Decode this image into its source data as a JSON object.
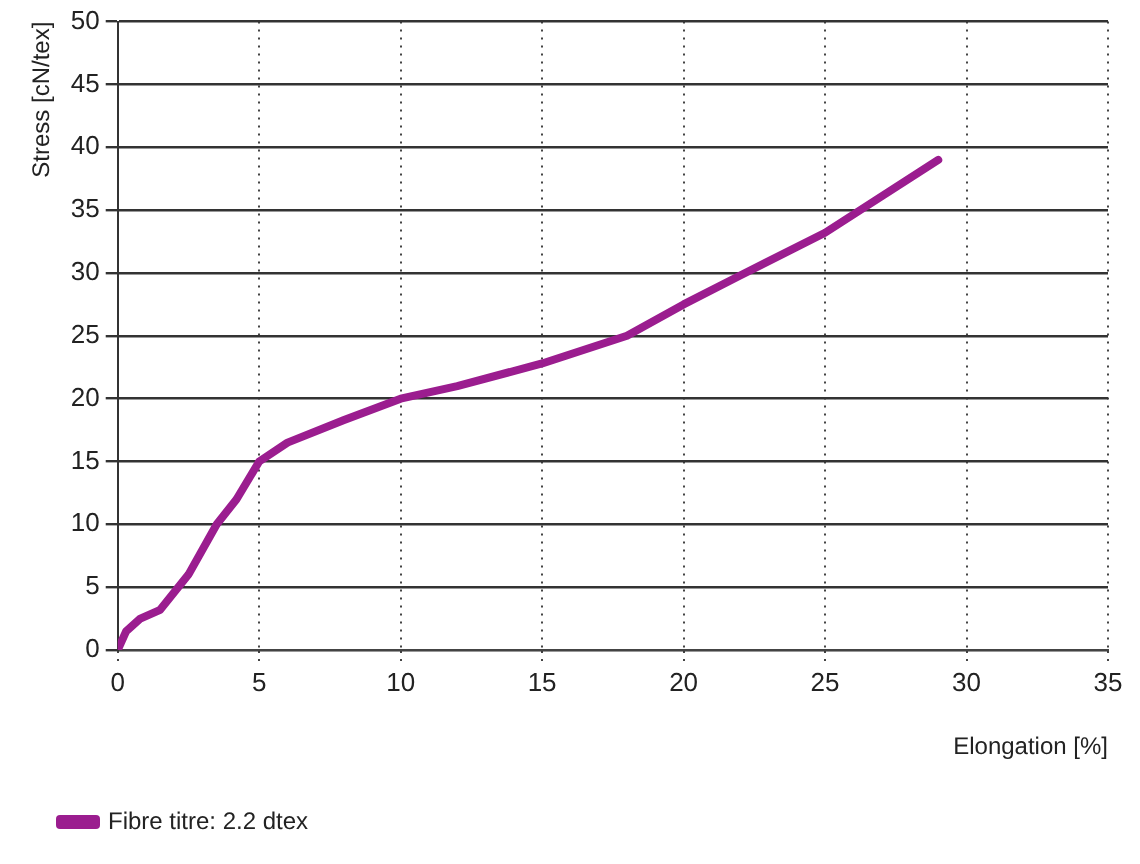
{
  "chart_data": {
    "type": "line",
    "xlabel": "Elongation [%]",
    "ylabel": "Stress [cN/tex]",
    "xlim": [
      0,
      35
    ],
    "ylim": [
      0,
      50
    ],
    "xticks": [
      0,
      5,
      10,
      15,
      20,
      25,
      30,
      35
    ],
    "yticks": [
      0,
      5,
      10,
      15,
      20,
      25,
      30,
      35,
      40,
      45,
      50
    ],
    "grid": true,
    "legend": "bottom left",
    "marker": "none",
    "line_style": "solid",
    "series": [
      {
        "name": "Fibre titre: 2.2 dtex",
        "color": "#9b1d8f",
        "x": [
          0,
          0.3,
          0.8,
          1.5,
          2.5,
          3.5,
          4.2,
          5,
          6,
          8,
          10,
          12,
          15,
          18,
          20,
          22,
          25,
          29
        ],
        "values": [
          0,
          1.5,
          2.5,
          3.2,
          6,
          10,
          12,
          15,
          16.5,
          18.3,
          20,
          21,
          22.8,
          25,
          27.5,
          29.8,
          33.2,
          39
        ]
      }
    ]
  }
}
